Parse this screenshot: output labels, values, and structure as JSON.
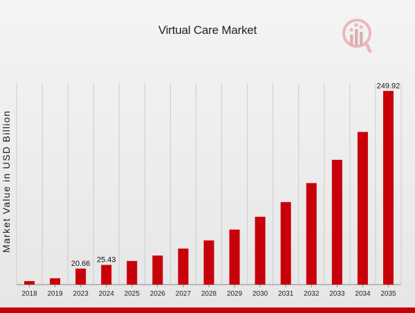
{
  "chart_data": {
    "type": "bar",
    "title": "Virtual Care Market",
    "xlabel": "",
    "ylabel": "Market Value in USD Billion",
    "categories": [
      "2018",
      "2019",
      "2023",
      "2024",
      "2025",
      "2026",
      "2027",
      "2028",
      "2029",
      "2030",
      "2031",
      "2032",
      "2033",
      "2034",
      "2035"
    ],
    "values": [
      4.5,
      8.2,
      20.66,
      25.43,
      30.5,
      37.5,
      46.5,
      57.0,
      71.0,
      87.5,
      106.5,
      131.0,
      161.0,
      197.0,
      249.92
    ],
    "data_labels": {
      "2023": "20.66",
      "2024": "25.43",
      "2035": "249.92"
    },
    "ylim": [
      0,
      260
    ],
    "grid": "vertical",
    "legend": "none",
    "colors": {
      "bar": "#c8000a",
      "grid": "#cccccc",
      "axis": "#888888",
      "bottom_band": "#c8000a"
    }
  },
  "branding": {
    "logo_icon": "market-research-logo-icon"
  }
}
